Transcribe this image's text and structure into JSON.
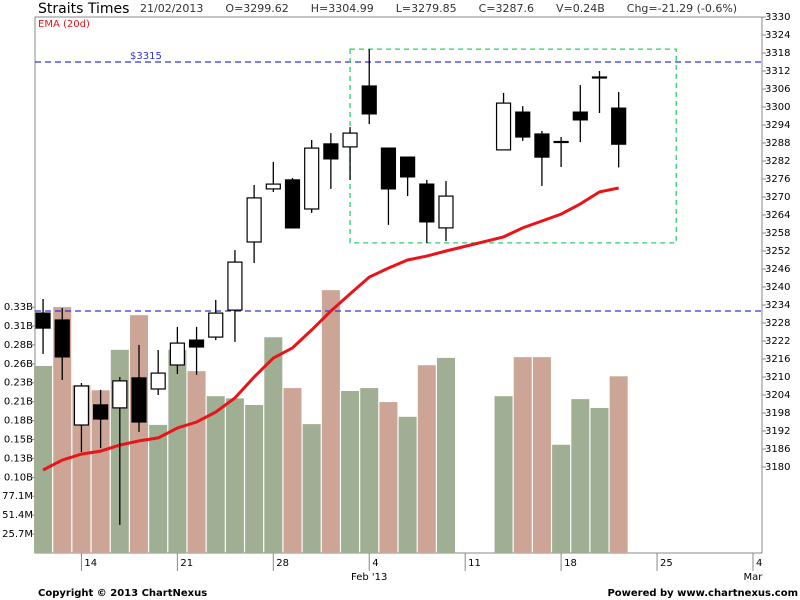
{
  "chart_data": {
    "type": "candlestick",
    "title": "Straits Times",
    "header": [
      "21/02/2013",
      "O=3299.62",
      "H=3304.99",
      "L=3279.85",
      "C=3287.6",
      "V=0.24B",
      "Chg=-21.29 (-0.6%)"
    ],
    "x": [
      "2013-01-10",
      "2013-01-11",
      "2013-01-14",
      "2013-01-15",
      "2013-01-16",
      "2013-01-17",
      "2013-01-18",
      "2013-01-21",
      "2013-01-22",
      "2013-01-23",
      "2013-01-24",
      "2013-01-25",
      "2013-01-28",
      "2013-01-29",
      "2013-01-30",
      "2013-01-31",
      "2013-02-01",
      "2013-02-04",
      "2013-02-05",
      "2013-02-06",
      "2013-02-07",
      "2013-02-08",
      "2013-02-13",
      "2013-02-14",
      "2013-02-15",
      "2013-02-18",
      "2013-02-19",
      "2013-02-20",
      "2013-02-21"
    ],
    "open": [
      3231.3,
      3229,
      3194,
      3200.7,
      3199.7,
      3209.7,
      3206,
      3214,
      3222.3,
      3223.3,
      3232.3,
      3255,
      3272.7,
      3275.7,
      3266,
      3287.7,
      3286.7,
      3307,
      3286.3,
      3283.3,
      3274.3,
      3259.7,
      3285.7,
      3298.3,
      3291,
      3288.5,
      3298.3,
      3310,
      3299.62
    ],
    "high": [
      3236,
      3233,
      3208,
      3205.7,
      3210,
      3220.7,
      3219,
      3226.7,
      3226.7,
      3235.7,
      3252.3,
      3274,
      3281.7,
      3276.3,
      3289,
      3291.3,
      3293.3,
      3319.3,
      3286.3,
      3283.3,
      3275.7,
      3275.3,
      3304.7,
      3300.3,
      3292,
      3290,
      3307.3,
      3312,
      3304.99
    ],
    "low": [
      3217.7,
      3209,
      3185,
      3186.3,
      3160.7,
      3191.7,
      3204,
      3211,
      3210.7,
      3222.3,
      3221.7,
      3248,
      3271.7,
      3259.7,
      3264.7,
      3272.7,
      3275.7,
      3294.3,
      3260.7,
      3270.3,
      3254.7,
      3255.3,
      3285.7,
      3288.7,
      3273.7,
      3280,
      3288.3,
      3298,
      3279.85
    ],
    "close": [
      3226.3,
      3216.7,
      3207,
      3196,
      3208.7,
      3195,
      3211.3,
      3221.3,
      3220,
      3231.3,
      3248.3,
      3269.7,
      3274.3,
      3259.7,
      3286.3,
      3282.7,
      3291.3,
      3297.7,
      3272.7,
      3276.7,
      3261.7,
      3270.3,
      3301.3,
      3290,
      3283.3,
      3288.3,
      3295.7,
      3309.7,
      3287.6
    ],
    "up_color": "#ffffff",
    "down_color": "#000000",
    "series": [
      {
        "name": "EMA (20d)",
        "type": "line",
        "color": "#e8141a",
        "values": [
          3179,
          3182.3,
          3184.3,
          3185.3,
          3187.3,
          3188.7,
          3189.7,
          3193,
          3195,
          3198.3,
          3203,
          3210,
          3216.3,
          3219.7,
          3225.7,
          3232,
          3237.7,
          3243.3,
          3246.3,
          3249,
          3250.3,
          3252,
          3256.7,
          3259.7,
          3262,
          3264.3,
          3267.7,
          3271.7,
          3273
        ]
      },
      {
        "type": "bar",
        "axis": "y2",
        "values": [
          254000000,
          334000000,
          228000000,
          221000000,
          276000000,
          323000000,
          174000000,
          276000000,
          247000000,
          213000000,
          210000000,
          201000000,
          293000000,
          224000000,
          175000000,
          357000000,
          220000000,
          224000000,
          205000000,
          185000000,
          255000000,
          265000000,
          213000000,
          266000000,
          266000000,
          147000000,
          209000000,
          197000000,
          240000000
        ],
        "colors": [
          "#a0ae94",
          "#cca597",
          "#cca597",
          "#cca597",
          "#a0ae94",
          "#cca597",
          "#a0ae94",
          "#a0ae94",
          "#cca597",
          "#a0ae94",
          "#a0ae94",
          "#a0ae94",
          "#a0ae94",
          "#cca597",
          "#a0ae94",
          "#cca597",
          "#a0ae94",
          "#a0ae94",
          "#cca597",
          "#a0ae94",
          "#cca597",
          "#a0ae94",
          "#a0ae94",
          "#cca597",
          "#cca597",
          "#a0ae94",
          "#a0ae94",
          "#a0ae94",
          "#cca597"
        ]
      }
    ],
    "ylim": [
      3151.33,
      3330
    ],
    "yticks": [
      3180,
      3186,
      3192,
      3198,
      3204,
      3210,
      3216,
      3222,
      3228,
      3234,
      3240,
      3246,
      3252,
      3258,
      3264,
      3270,
      3276,
      3282,
      3288,
      3294,
      3300,
      3306,
      3312,
      3318,
      3324,
      3330
    ],
    "y2lim": [
      0,
      728000000
    ],
    "y2ticks": [
      {
        "value": 25700000,
        "label": "25.7M"
      },
      {
        "value": 51400000,
        "label": "51.4M"
      },
      {
        "value": 77100000,
        "label": "77.1M"
      },
      {
        "value": 102800000,
        "label": "0.10B"
      },
      {
        "value": 128500000,
        "label": "0.13B"
      },
      {
        "value": 154200000,
        "label": "0.15B"
      },
      {
        "value": 179900000,
        "label": "0.18B"
      },
      {
        "value": 205600000,
        "label": "0.21B"
      },
      {
        "value": 231300000,
        "label": "0.23B"
      },
      {
        "value": 257000000,
        "label": "0.26B"
      },
      {
        "value": 282700000,
        "label": "0.28B"
      },
      {
        "value": 308400000,
        "label": "0.31B"
      },
      {
        "value": 334100000,
        "label": "0.33B"
      }
    ],
    "xlim": [
      "2013-01-10",
      "2013-03-04"
    ],
    "xticks": [
      {
        "value": "2013-01-14",
        "label": "14"
      },
      {
        "value": "2013-01-21",
        "label": "21"
      },
      {
        "value": "2013-01-28",
        "label": "28"
      },
      {
        "value": "2013-02-04",
        "label": "4"
      },
      {
        "value": "2013-02-11",
        "label": "11"
      },
      {
        "value": "2013-02-18",
        "label": "18"
      },
      {
        "value": "2013-02-25",
        "label": "25"
      },
      {
        "value": "2013-03-04",
        "label": "4"
      }
    ],
    "month_labels": [
      {
        "value": "2013-02-04",
        "label": "Feb '13"
      },
      {
        "value": "2013-03-04",
        "label": "Mar"
      }
    ],
    "hlines": [
      {
        "value": 3315,
        "label": "$3315",
        "color": "#3333dd"
      },
      {
        "value": 3232,
        "color": "#3333dd"
      }
    ],
    "box": {
      "x": [
        "2013-02-01",
        "2013-02-26"
      ],
      "y": [
        3254.7,
        3319.3
      ],
      "color": "#2ecc71"
    },
    "footer": {
      "left": "Copyright © 2013 ChartNexus",
      "right": "Powered by www.chartnexus.com"
    }
  }
}
